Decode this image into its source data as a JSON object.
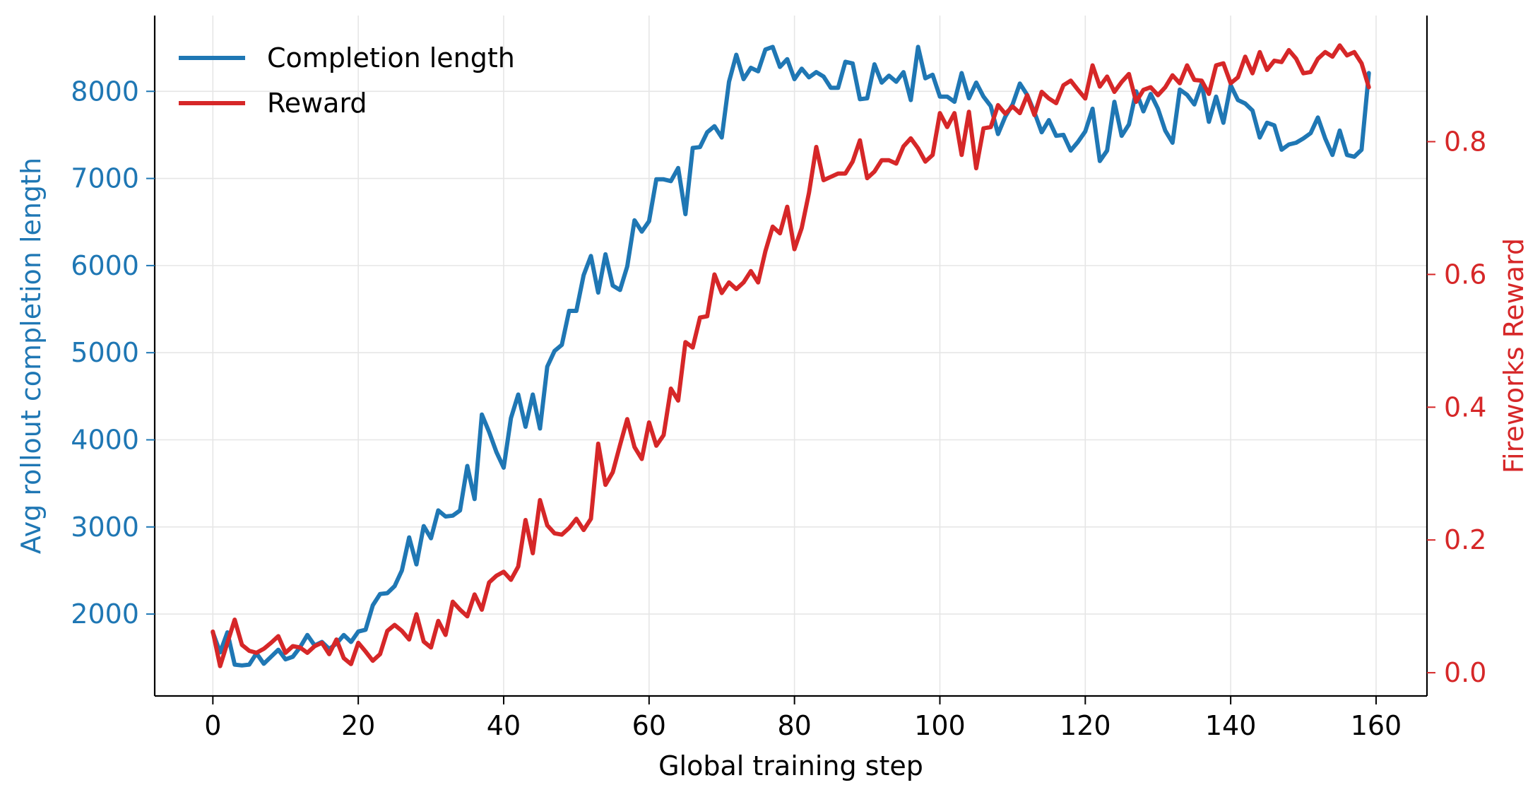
{
  "chart_data": {
    "type": "line",
    "title": "",
    "xlabel": "Global training step",
    "ylabel_left": "Avg rollout completion length",
    "ylabel_right": "Fireworks Reward",
    "xlim": [
      -8,
      167
    ],
    "ylim_left": [
      1060,
      8870
    ],
    "ylim_right": [
      -0.035,
      0.99
    ],
    "xticks": [
      0,
      20,
      40,
      60,
      80,
      100,
      120,
      140,
      160
    ],
    "yticks_left": [
      2000,
      3000,
      4000,
      5000,
      6000,
      7000,
      8000
    ],
    "yticks_right": [
      "0.0",
      "0.2",
      "0.4",
      "0.6",
      "0.8"
    ],
    "grid": true,
    "legend_position": "top-left",
    "colors": {
      "left_axis": "#1f77b4",
      "right_axis": "#d62728"
    },
    "series": [
      {
        "name": "Completion length",
        "axis": "left",
        "color": "#1f77b4",
        "x": [
          0,
          1,
          2,
          3,
          4,
          5,
          6,
          7,
          8,
          9,
          10,
          11,
          12,
          13,
          14,
          15,
          16,
          17,
          18,
          19,
          20,
          21,
          22,
          23,
          24,
          25,
          26,
          27,
          28,
          29,
          30,
          31,
          32,
          33,
          34,
          35,
          36,
          37,
          38,
          39,
          40,
          41,
          42,
          43,
          44,
          45,
          46,
          47,
          48,
          49,
          50,
          51,
          52,
          53,
          54,
          55,
          56,
          57,
          58,
          59,
          60,
          61,
          62,
          63,
          64,
          65,
          66,
          67,
          68,
          69,
          70,
          71,
          72,
          73,
          74,
          75,
          76,
          77,
          78,
          79,
          80,
          81,
          82,
          83,
          84,
          85,
          86,
          87,
          88,
          89,
          90,
          91,
          92,
          93,
          94,
          95,
          96,
          97,
          98,
          99,
          100,
          101,
          102,
          103,
          104,
          105,
          106,
          107,
          108,
          109,
          110,
          111,
          112,
          113,
          114,
          115,
          116,
          117,
          118,
          119,
          120,
          121,
          122,
          123,
          124,
          125,
          126,
          127,
          128,
          129,
          130,
          131,
          132,
          133,
          134,
          135,
          136,
          137,
          138,
          139,
          140,
          141,
          142,
          143,
          144,
          145,
          146,
          147,
          148,
          149,
          150,
          151,
          152,
          153,
          154,
          155,
          156,
          157,
          158,
          159
        ],
        "values": [
          1790,
          1560,
          1790,
          1420,
          1410,
          1420,
          1550,
          1430,
          1510,
          1590,
          1480,
          1510,
          1620,
          1760,
          1640,
          1680,
          1600,
          1660,
          1760,
          1680,
          1800,
          1820,
          2100,
          2230,
          2240,
          2320,
          2500,
          2880,
          2570,
          3010,
          2870,
          3190,
          3120,
          3130,
          3190,
          3700,
          3320,
          4290,
          4090,
          3860,
          3680,
          4250,
          4520,
          4150,
          4520,
          4130,
          4840,
          5020,
          5090,
          5480,
          5480,
          5890,
          6110,
          5690,
          6130,
          5770,
          5720,
          5990,
          6520,
          6390,
          6510,
          6990,
          6990,
          6970,
          7120,
          6590,
          7350,
          7360,
          7530,
          7600,
          7470,
          8110,
          8420,
          8140,
          8270,
          8230,
          8480,
          8510,
          8280,
          8370,
          8140,
          8260,
          8160,
          8220,
          8170,
          8040,
          8040,
          8340,
          8320,
          7910,
          7920,
          8310,
          8100,
          8180,
          8110,
          8220,
          7900,
          8510,
          8150,
          8190,
          7940,
          7940,
          7880,
          8210,
          7920,
          8100,
          7940,
          7830,
          7510,
          7710,
          7850,
          8090,
          7960,
          7760,
          7530,
          7670,
          7490,
          7500,
          7320,
          7420,
          7540,
          7800,
          7200,
          7320,
          7880,
          7490,
          7620,
          8000,
          7770,
          7970,
          7800,
          7550,
          7410,
          8020,
          7960,
          7850,
          8090,
          7650,
          7940,
          7640,
          8070,
          7900,
          7860,
          7780,
          7470,
          7640,
          7610,
          7330,
          7390,
          7410,
          7460,
          7520,
          7700,
          7460,
          7270,
          7550,
          7270,
          7250,
          7330,
          8210
        ]
      },
      {
        "name": "Reward",
        "axis": "right",
        "color": "#d62728",
        "x": [
          0,
          1,
          2,
          3,
          4,
          5,
          6,
          7,
          8,
          9,
          10,
          11,
          12,
          13,
          14,
          15,
          16,
          17,
          18,
          19,
          20,
          21,
          22,
          23,
          24,
          25,
          26,
          27,
          28,
          29,
          30,
          31,
          32,
          33,
          34,
          35,
          36,
          37,
          38,
          39,
          40,
          41,
          42,
          43,
          44,
          45,
          46,
          47,
          48,
          49,
          50,
          51,
          52,
          53,
          54,
          55,
          56,
          57,
          58,
          59,
          60,
          61,
          62,
          63,
          64,
          65,
          66,
          67,
          68,
          69,
          70,
          71,
          72,
          73,
          74,
          75,
          76,
          77,
          78,
          79,
          80,
          81,
          82,
          83,
          84,
          85,
          86,
          87,
          88,
          89,
          90,
          91,
          92,
          93,
          94,
          95,
          96,
          97,
          98,
          99,
          100,
          101,
          102,
          103,
          104,
          105,
          106,
          107,
          108,
          109,
          110,
          111,
          112,
          113,
          114,
          115,
          116,
          117,
          118,
          119,
          120,
          121,
          122,
          123,
          124,
          125,
          126,
          127,
          128,
          129,
          130,
          131,
          132,
          133,
          134,
          135,
          136,
          137,
          138,
          139,
          140,
          141,
          142,
          143,
          144,
          145,
          146,
          147,
          148,
          149,
          150,
          151,
          152,
          153,
          154,
          155,
          156,
          157,
          158,
          159
        ],
        "values": [
          0.062,
          0.01,
          0.045,
          0.08,
          0.042,
          0.033,
          0.03,
          0.036,
          0.045,
          0.055,
          0.03,
          0.04,
          0.038,
          0.03,
          0.04,
          0.045,
          0.028,
          0.05,
          0.022,
          0.013,
          0.045,
          0.032,
          0.018,
          0.028,
          0.063,
          0.072,
          0.063,
          0.05,
          0.088,
          0.047,
          0.038,
          0.078,
          0.057,
          0.107,
          0.095,
          0.085,
          0.118,
          0.095,
          0.136,
          0.146,
          0.152,
          0.14,
          0.16,
          0.23,
          0.18,
          0.26,
          0.222,
          0.21,
          0.208,
          0.218,
          0.232,
          0.215,
          0.232,
          0.345,
          0.283,
          0.302,
          0.343,
          0.382,
          0.34,
          0.322,
          0.377,
          0.342,
          0.358,
          0.428,
          0.41,
          0.498,
          0.49,
          0.535,
          0.537,
          0.6,
          0.572,
          0.588,
          0.578,
          0.588,
          0.605,
          0.588,
          0.635,
          0.672,
          0.662,
          0.702,
          0.638,
          0.67,
          0.723,
          0.792,
          0.742,
          0.747,
          0.752,
          0.752,
          0.77,
          0.802,
          0.745,
          0.755,
          0.772,
          0.772,
          0.767,
          0.793,
          0.805,
          0.79,
          0.77,
          0.78,
          0.843,
          0.822,
          0.843,
          0.78,
          0.845,
          0.76,
          0.82,
          0.822,
          0.855,
          0.842,
          0.853,
          0.843,
          0.87,
          0.84,
          0.875,
          0.865,
          0.858,
          0.885,
          0.892,
          0.878,
          0.865,
          0.915,
          0.883,
          0.898,
          0.875,
          0.89,
          0.902,
          0.86,
          0.878,
          0.882,
          0.87,
          0.882,
          0.9,
          0.888,
          0.915,
          0.893,
          0.892,
          0.872,
          0.915,
          0.918,
          0.888,
          0.897,
          0.928,
          0.903,
          0.935,
          0.908,
          0.922,
          0.92,
          0.938,
          0.925,
          0.903,
          0.905,
          0.925,
          0.935,
          0.928,
          0.945,
          0.93,
          0.935,
          0.918,
          0.882
        ]
      }
    ]
  }
}
